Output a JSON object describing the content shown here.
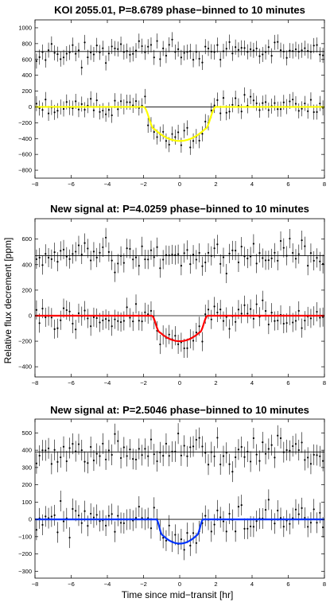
{
  "figure": {
    "ylabel": "Relative flux decrement [ppm]",
    "xlabel": "Time since mid−transit [hr]"
  },
  "chart_data": [
    {
      "type": "scatter",
      "title": "KOI 2055.01, P=8.6789 phase−binned to 10 minutes",
      "xlabel": "",
      "ylabel": "",
      "xlim": [
        -8,
        8
      ],
      "ylim": [
        -900,
        1100
      ],
      "xticks": [
        -8,
        -6,
        -4,
        -2,
        0,
        2,
        4,
        6,
        8
      ],
      "yticks": [
        -800,
        -600,
        -400,
        -200,
        0,
        200,
        400,
        600,
        800,
        1000
      ],
      "offset": 700,
      "depth": 430,
      "half_duration": 2.0,
      "ingress": 0.6,
      "model_color": "#ffff00",
      "noise": 95,
      "errbar": 95,
      "seed": 11,
      "grid": false
    },
    {
      "type": "scatter",
      "title": "New signal at: P=4.0259 phase−binned to 10 minutes",
      "xlabel": "",
      "ylabel": "",
      "xlim": [
        -8,
        8
      ],
      "ylim": [
        -480,
        760
      ],
      "xticks": [
        -8,
        -6,
        -4,
        -2,
        0,
        2,
        4,
        6,
        8
      ],
      "yticks": [
        -400,
        -200,
        0,
        200,
        400,
        600
      ],
      "offset": 470,
      "depth": 200,
      "half_duration": 1.55,
      "ingress": 0.45,
      "model_color": "#ff0000",
      "noise": 75,
      "errbar": 75,
      "seed": 23,
      "grid": false
    },
    {
      "type": "scatter",
      "title": "New signal at: P=2.5046 phase−binned to 10 minutes",
      "xlabel": "",
      "ylabel": "",
      "xlim": [
        -8,
        8
      ],
      "ylim": [
        -340,
        580
      ],
      "xticks": [
        -8,
        -6,
        -4,
        -2,
        0,
        2,
        4,
        6,
        8
      ],
      "yticks": [
        -300,
        -200,
        -100,
        0,
        100,
        200,
        300,
        400,
        500
      ],
      "offset": 390,
      "depth": 140,
      "half_duration": 1.3,
      "ingress": 0.35,
      "model_color": "#0033ff",
      "noise": 60,
      "errbar": 60,
      "seed": 37,
      "grid": false
    }
  ]
}
